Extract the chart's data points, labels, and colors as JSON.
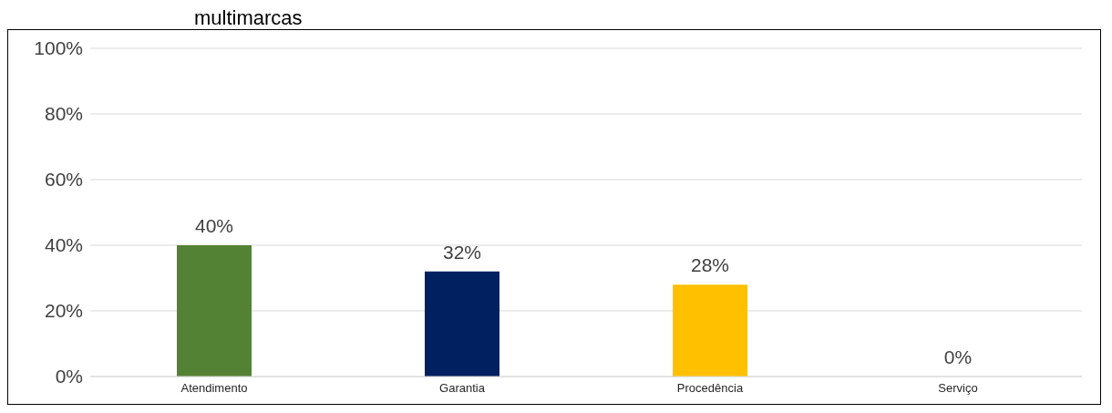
{
  "chart_data": {
    "type": "bar",
    "title": "multimarcas",
    "categories": [
      "Atendimento",
      "Garantia",
      "Procedência",
      "Serviço"
    ],
    "values": [
      40,
      32,
      28,
      0
    ],
    "colors": [
      "#548235",
      "#002060",
      "#ffc000",
      "#7f7f7f"
    ],
    "value_labels": [
      "40%",
      "32%",
      "28%",
      "0%"
    ],
    "ylim": [
      0,
      100
    ],
    "yticks": [
      {
        "value": 0,
        "label": "0%"
      },
      {
        "value": 20,
        "label": "20%"
      },
      {
        "value": 40,
        "label": "40%"
      },
      {
        "value": 60,
        "label": "60%"
      },
      {
        "value": 80,
        "label": "80%"
      },
      {
        "value": 100,
        "label": "100%"
      }
    ],
    "grid": "y",
    "legend": false
  }
}
